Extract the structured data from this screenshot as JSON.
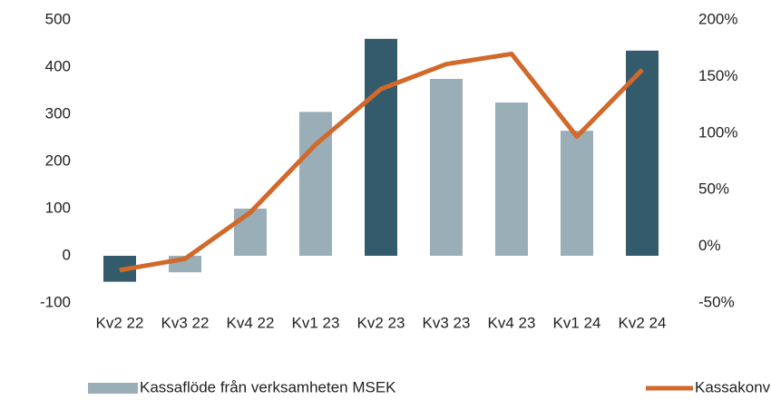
{
  "chart_data": {
    "type": "bar-line",
    "categories": [
      "Kv2 22",
      "Kv3 22",
      "Kv4 22",
      "Kv1 23",
      "Kv2 23",
      "Kv3 23",
      "Kv4 23",
      "Kv1 24",
      "Kv2 24"
    ],
    "series": [
      {
        "name": "Kassaflöde från verksamheten MSEK",
        "type": "bar",
        "color": "#9aaeb8",
        "colors": [
          "#335b6b",
          "#9aaeb8",
          "#9aaeb8",
          "#9aaeb8",
          "#335b6b",
          "#9aaeb8",
          "#9aaeb8",
          "#9aaeb8",
          "#335b6b"
        ],
        "values": [
          -55,
          -35,
          100,
          305,
          460,
          375,
          325,
          265,
          435
        ]
      },
      {
        "name": "Kassakonvertering",
        "type": "line",
        "axis": "y2",
        "color": "#d0692a",
        "values": [
          -21,
          -11,
          30,
          90,
          139,
          161,
          170,
          97,
          156
        ]
      }
    ],
    "ylim": [
      -100,
      500
    ],
    "yticks": [
      -100,
      0,
      100,
      200,
      300,
      400,
      500
    ],
    "y2lim": [
      -50,
      200
    ],
    "y2ticks": [
      {
        "value": -50,
        "label": "-50%"
      },
      {
        "value": 0,
        "label": "0%"
      },
      {
        "value": 50,
        "label": "50%"
      },
      {
        "value": 100,
        "label": "100%"
      },
      {
        "value": 150,
        "label": "150%"
      },
      {
        "value": 200,
        "label": "200%"
      }
    ],
    "legend": "bottom"
  }
}
